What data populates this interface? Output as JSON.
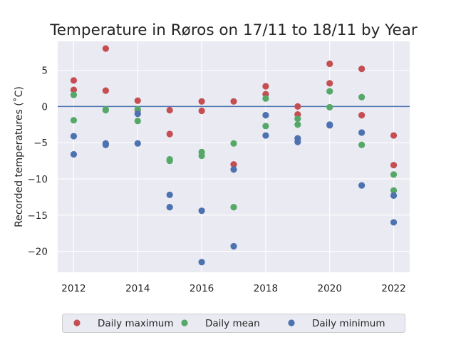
{
  "chart_data": {
    "type": "scatter",
    "title": "Temperature in Røros on 17/11 to 18/11 by Year",
    "xlabel": "",
    "ylabel": "Recorded temperatures (˚C)",
    "xlim": [
      2011.5,
      2022.5
    ],
    "ylim": [
      -22.9,
      9.0
    ],
    "xticks": [
      2012,
      2014,
      2016,
      2018,
      2020,
      2022
    ],
    "xtick_labels": [
      "2012",
      "2014",
      "2016",
      "2018",
      "2020",
      "2022"
    ],
    "yticks": [
      5,
      0,
      -5,
      -10,
      -15,
      -20
    ],
    "ytick_labels": [
      "5",
      "0",
      "−5",
      "−10",
      "−15",
      "−20"
    ],
    "grid": true,
    "reference_line": {
      "y": 0,
      "color": "#4c72b0"
    },
    "legend_position": "below plot, horizontal",
    "series": [
      {
        "name": "Daily maximum",
        "color": "#c44e52",
        "points": [
          [
            2012,
            3.6
          ],
          [
            2012,
            2.3
          ],
          [
            2013,
            8.0
          ],
          [
            2013,
            2.2
          ],
          [
            2014,
            0.8
          ],
          [
            2014,
            -0.5
          ],
          [
            2015,
            -0.5
          ],
          [
            2015,
            -3.8
          ],
          [
            2016,
            0.7
          ],
          [
            2016,
            -0.6
          ],
          [
            2017,
            0.7
          ],
          [
            2017,
            -8.0
          ],
          [
            2018,
            2.8
          ],
          [
            2018,
            1.7
          ],
          [
            2019,
            0.0
          ],
          [
            2019,
            -1.1
          ],
          [
            2020,
            5.9
          ],
          [
            2020,
            3.2
          ],
          [
            2021,
            5.2
          ],
          [
            2021,
            -1.2
          ],
          [
            2022,
            -4.0
          ],
          [
            2022,
            -8.1
          ]
        ]
      },
      {
        "name": "Daily mean",
        "color": "#55a868",
        "points": [
          [
            2012,
            1.6
          ],
          [
            2012,
            -1.9
          ],
          [
            2013,
            -0.4
          ],
          [
            2013,
            -0.5
          ],
          [
            2014,
            -0.4
          ],
          [
            2014,
            -2.0
          ],
          [
            2015,
            -7.3
          ],
          [
            2015,
            -7.5
          ],
          [
            2016,
            -6.3
          ],
          [
            2016,
            -6.8
          ],
          [
            2017,
            -5.1
          ],
          [
            2017,
            -13.9
          ],
          [
            2018,
            1.1
          ],
          [
            2018,
            -2.7
          ],
          [
            2019,
            -1.7
          ],
          [
            2019,
            -2.5
          ],
          [
            2020,
            2.1
          ],
          [
            2020,
            -0.1
          ],
          [
            2021,
            1.3
          ],
          [
            2021,
            -5.3
          ],
          [
            2022,
            -9.4
          ],
          [
            2022,
            -11.6
          ]
        ]
      },
      {
        "name": "Daily minimum",
        "color": "#4c72b0",
        "points": [
          [
            2012,
            -4.1
          ],
          [
            2012,
            -6.6
          ],
          [
            2013,
            -5.1
          ],
          [
            2013,
            -5.3
          ],
          [
            2014,
            -1.0
          ],
          [
            2014,
            -5.1
          ],
          [
            2015,
            -12.2
          ],
          [
            2015,
            -13.9
          ],
          [
            2016,
            -14.4
          ],
          [
            2016,
            -21.5
          ],
          [
            2017,
            -8.7
          ],
          [
            2017,
            -19.3
          ],
          [
            2018,
            -1.2
          ],
          [
            2018,
            -4.0
          ],
          [
            2019,
            -4.4
          ],
          [
            2019,
            -4.9
          ],
          [
            2020,
            -2.5
          ],
          [
            2020,
            -2.6
          ],
          [
            2021,
            -3.6
          ],
          [
            2021,
            -10.9
          ],
          [
            2022,
            -12.3
          ],
          [
            2022,
            -16.0
          ]
        ]
      }
    ]
  }
}
